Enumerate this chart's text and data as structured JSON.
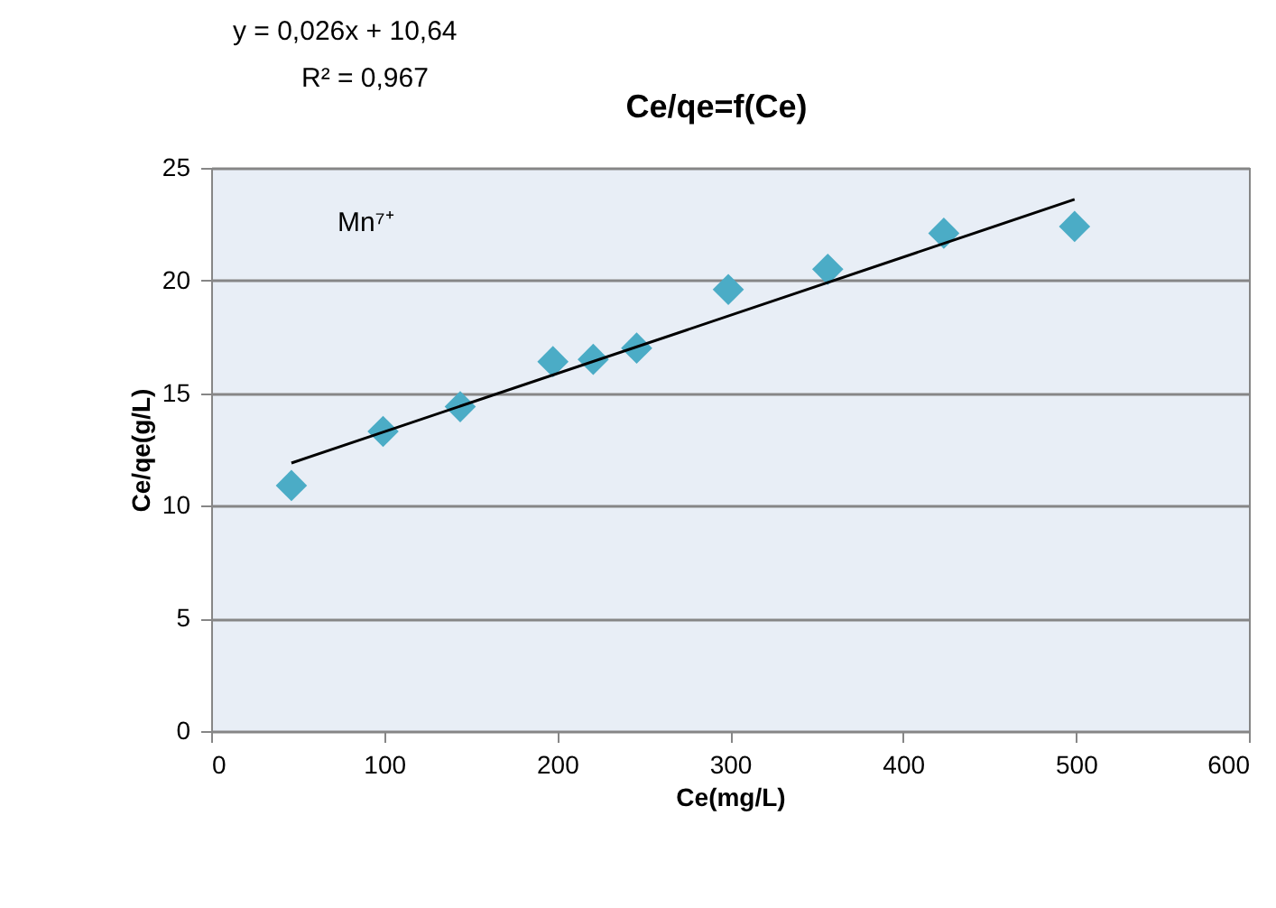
{
  "chart_data": {
    "type": "scatter",
    "title": "Ce/qe=f(Ce)",
    "xlabel": "Ce(mg/L)",
    "ylabel": "Ce/qe(g/L)",
    "x": [
      46.4,
      99.4,
      144,
      197.6,
      220.9,
      246,
      299,
      356.5,
      423.6,
      499.2
    ],
    "series": [
      {
        "color": "#4bacc6",
        "marker": "diamond",
        "values": [
          10.9,
          13.3,
          14.4,
          16.4,
          16.5,
          17.0,
          19.6,
          20.5,
          22.1,
          22.4
        ]
      },
      {
        "type": "line",
        "color": "#000000",
        "x": [
          46.4,
          499.2
        ],
        "values": [
          11.9,
          23.6
        ],
        "line_style": "solid"
      }
    ],
    "annotations": [
      "y = 0,026x + 10,64",
      "R² = 0,967",
      "Mn⁷⁺"
    ],
    "xlim": [
      0,
      600
    ],
    "xticks": [
      0,
      100,
      200,
      300,
      400,
      500,
      600
    ],
    "ylim": [
      0,
      25
    ],
    "yticks": [
      0,
      5,
      10,
      15,
      20,
      25
    ],
    "grid": "y"
  }
}
